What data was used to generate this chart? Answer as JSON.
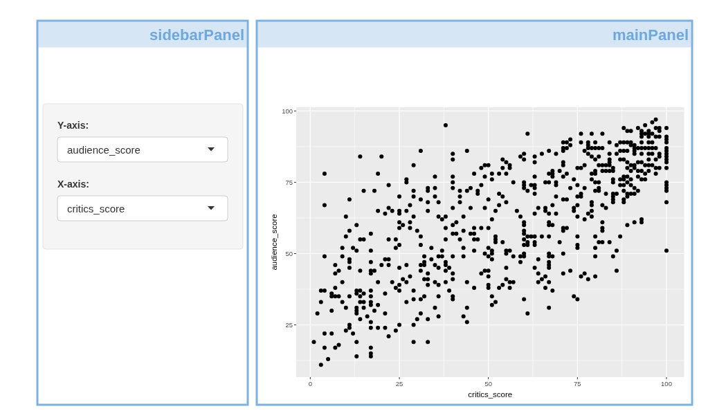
{
  "chart_data": [
    {
      "type": "other",
      "title": "sidebarPanel",
      "annotations": [
        "Y-axis:",
        "audience_score",
        "X-axis:",
        "critics_score"
      ]
    },
    {
      "type": "scatter",
      "title": "mainPanel",
      "xlabel": "critics_score",
      "ylabel": "audience_score",
      "marker": "circle",
      "grid": true,
      "xlim": [
        -3.95,
        104.95
      ],
      "ylim": [
        6.7,
        101.3
      ],
      "xticks": [
        0,
        25,
        50,
        75,
        100
      ],
      "yticks": [
        25,
        50,
        75,
        100
      ],
      "series": [
        {
          "color": "#000000",
          "x": [
            1,
            2,
            3,
            3,
            3,
            4,
            4,
            4,
            4,
            5,
            6,
            6,
            6,
            6,
            7,
            8,
            7,
            8,
            7,
            7,
            7,
            8,
            9,
            9,
            9,
            10,
            10,
            11,
            11,
            11,
            11,
            11,
            11,
            12,
            13,
            13,
            13,
            13,
            13,
            13,
            13,
            14,
            14,
            14,
            14,
            14,
            15,
            15,
            15,
            16,
            17,
            17,
            17,
            18,
            17,
            17,
            17,
            17,
            17,
            17,
            17,
            17,
            17,
            18,
            19,
            19,
            19,
            20,
            21,
            22,
            22,
            21,
            21,
            21,
            22,
            23,
            24,
            24,
            25,
            25,
            25,
            25,
            26,
            27,
            27,
            27,
            28,
            29,
            29,
            29,
            29,
            30,
            31,
            31,
            31,
            31,
            32,
            32,
            32,
            32,
            32,
            33,
            33,
            33,
            33,
            33,
            34,
            35,
            35,
            35,
            36,
            37,
            36,
            36,
            36,
            36,
            38,
            38,
            38,
            38,
            39,
            39,
            40,
            40,
            40,
            40,
            40,
            43,
            43,
            44,
            44,
            44,
            46,
            48
          ],
          "values": [
            19,
            29,
            11,
            33,
            37,
            37,
            49,
            22,
            17,
            13,
            22,
            30,
            36,
            35,
            35,
            35,
            17,
            18,
            38,
            43,
            46,
            44,
            49,
            40,
            33,
            31,
            23,
            48,
            47,
            45,
            35,
            25,
            24,
            22,
            19,
            14,
            37,
            36,
            31,
            30,
            29,
            37,
            35,
            33,
            27,
            44,
            36,
            33,
            31,
            28,
            47,
            44,
            43,
            44,
            37,
            35,
            33,
            32,
            26,
            24,
            17,
            15,
            14,
            30,
            40,
            32,
            24,
            46,
            48,
            48,
            46,
            36,
            29,
            24,
            21,
            40,
            23,
            38,
            45,
            39,
            37,
            25,
            41,
            46,
            40,
            33,
            42,
            37,
            34,
            25,
            19,
            27,
            46,
            44,
            34,
            29,
            49,
            47,
            46,
            41,
            35,
            43,
            41,
            39,
            27,
            19,
            48,
            46,
            40,
            31,
            49,
            49,
            45,
            39,
            35,
            28,
            47,
            46,
            44,
            40,
            45,
            37,
            49,
            43,
            41,
            35,
            34,
            49,
            28,
            40,
            31,
            26,
            38,
            43
          ]
        },
        {
          "color": "#000000",
          "x": [
            4,
            4,
            9,
            10,
            10,
            11,
            11,
            12,
            13,
            13,
            14,
            14,
            15,
            15,
            17,
            17,
            18,
            19,
            19,
            20,
            21,
            22,
            22,
            22,
            23,
            24,
            24,
            25,
            25,
            25,
            25,
            25,
            25,
            26,
            27,
            27,
            27,
            28,
            28,
            28,
            29,
            29,
            29,
            29,
            30,
            31,
            31,
            31,
            31,
            33,
            33,
            33,
            33,
            34,
            35,
            35,
            35,
            36,
            36,
            37,
            37,
            38,
            38,
            38,
            38,
            40,
            40,
            40,
            40,
            40,
            40,
            40,
            40,
            41,
            41,
            42,
            42,
            42,
            42,
            43,
            43,
            43,
            44,
            44,
            45,
            45,
            45,
            46,
            46,
            46,
            46,
            46,
            47,
            47,
            47,
            48,
            48,
            48
          ],
          "values": [
            78,
            67,
            52,
            63,
            56,
            69,
            58,
            52,
            60,
            51,
            84,
            55,
            55,
            72,
            57,
            51,
            72,
            78,
            65,
            84,
            64,
            74,
            66,
            55,
            65,
            55,
            52,
            70,
            65,
            64,
            61,
            59,
            53,
            60,
            76,
            75,
            65,
            61,
            59,
            67,
            81,
            72,
            70,
            63,
            58,
            86,
            69,
            56,
            53,
            73,
            72,
            68,
            65,
            52,
            77,
            73,
            70,
            68,
            63,
            62,
            51,
            95,
            63,
            59,
            55,
            85,
            83,
            77,
            75,
            73,
            66,
            60,
            57,
            61,
            57,
            72,
            70,
            68,
            55,
            63,
            58,
            52,
            86,
            72,
            73,
            66,
            57,
            78,
            59,
            57,
            55,
            51,
            72,
            71,
            55,
            80,
            74,
            59
          ]
        },
        {
          "color": "#000000",
          "x": [
            49,
            50,
            51,
            51,
            49,
            50,
            50,
            50,
            50,
            51,
            51,
            52,
            53,
            54,
            55,
            55,
            56,
            57,
            56,
            55,
            57,
            59,
            60,
            60,
            59,
            60,
            61,
            63,
            64,
            64,
            64,
            65,
            66,
            66,
            67,
            67,
            68,
            67,
            67,
            67,
            67,
            68,
            67,
            71,
            71,
            73,
            74,
            75,
            76,
            77,
            78,
            80,
            80,
            85,
            86
          ],
          "values": [
            50,
            49,
            50,
            48,
            44,
            44,
            42,
            39,
            38,
            35,
            32,
            33,
            38,
            39,
            45,
            41,
            40,
            40,
            38,
            50,
            49,
            49,
            49,
            50,
            47,
            34,
            29,
            45,
            48,
            43,
            40,
            41,
            42,
            38,
            50,
            49,
            49,
            47,
            46,
            45,
            40,
            37,
            31,
            50,
            43,
            44,
            35,
            34,
            42,
            43,
            41,
            49,
            42,
            49,
            44
          ]
        },
        {
          "color": "#000000",
          "x": [
            49,
            50,
            49,
            51,
            51,
            49,
            50,
            51,
            52,
            52,
            52,
            52,
            50,
            51,
            53,
            54,
            54,
            55,
            56,
            56,
            55,
            53,
            54,
            55,
            53,
            54,
            55,
            56,
            57,
            58,
            59,
            60,
            60,
            60,
            60,
            59,
            60,
            60,
            60,
            60,
            60,
            61,
            62,
            63,
            63,
            63,
            61,
            63,
            63,
            65,
            63,
            61,
            61,
            61,
            60,
            60,
            62,
            63,
            63,
            63,
            65,
            67,
            63,
            64,
            66,
            66,
            67,
            68,
            69,
            67,
            67,
            68,
            67,
            69,
            66,
            67,
            68,
            68,
            68,
            67,
            69,
            69,
            70,
            71,
            72,
            69,
            71,
            71,
            71,
            71,
            71,
            72,
            72,
            73,
            73,
            70,
            71,
            71,
            72,
            71,
            72,
            73,
            74,
            75,
            75,
            76,
            76,
            75,
            77,
            74,
            74,
            75,
            77,
            78,
            79,
            79,
            79,
            79,
            80,
            81,
            79,
            79,
            80,
            81,
            80,
            80,
            75,
            76,
            77,
            76,
            79,
            82,
            76,
            78,
            80,
            77,
            78,
            78,
            79,
            80,
            81,
            82,
            78,
            79,
            80,
            81,
            81,
            82,
            83,
            84
          ],
          "values": [
            81,
            81,
            77,
            78,
            76,
            66,
            69,
            62,
            65,
            56,
            55,
            54,
            52,
            51,
            78,
            83,
            80,
            82,
            81,
            80,
            78,
            71,
            70,
            68,
            67,
            54,
            51,
            51,
            75,
            65,
            63,
            61,
            60,
            58,
            57,
            84,
            85,
            83,
            75,
            74,
            73,
            72,
            74,
            74,
            73,
            71,
            92,
            84,
            82,
            85,
            77,
            56,
            54,
            53,
            55,
            53,
            56,
            56,
            54,
            53,
            56,
            56,
            64,
            66,
            66,
            65,
            64,
            67,
            64,
            61,
            60,
            60,
            86,
            85,
            75,
            75,
            79,
            78,
            77,
            78,
            75,
            74,
            79,
            77,
            78,
            70,
            82,
            81,
            89,
            87,
            86,
            89,
            87,
            90,
            88,
            54,
            59,
            58,
            59,
            69,
            69,
            73,
            76,
            74,
            70,
            70,
            71,
            67,
            73,
            66,
            65,
            63,
            62,
            64,
            63,
            68,
            67,
            65,
            72,
            72,
            76,
            78,
            75,
            75,
            79,
            78,
            80,
            80,
            81,
            92,
            92,
            92,
            89,
            89,
            89,
            86,
            88,
            87,
            87,
            87,
            87,
            87,
            85,
            84,
            83,
            84,
            81,
            81,
            81,
            81
          ]
        },
        {
          "color": "#000000",
          "x": [
            84,
            84,
            82,
            83,
            84,
            85,
            85,
            84,
            84,
            82,
            83,
            81,
            83,
            85,
            85,
            85,
            85,
            86,
            85,
            85,
            82,
            82,
            82,
            80,
            81,
            82,
            84,
            80,
            86,
            87,
            75,
            75,
            75,
            86,
            87,
            88,
            89,
            90,
            90,
            88,
            89,
            90,
            86,
            87,
            87,
            88,
            89,
            90,
            91,
            88,
            89,
            91,
            91,
            91,
            91,
            92,
            93,
            94,
            95,
            93,
            94,
            95,
            96,
            93,
            93,
            95,
            95,
            92,
            93,
            94,
            95,
            96,
            97,
            96,
            97,
            97,
            98,
            98,
            98,
            97,
            96,
            93,
            95,
            96,
            95,
            97,
            92,
            93,
            94,
            95,
            96,
            89,
            90,
            91,
            92,
            93,
            97,
            98,
            94,
            95,
            97,
            98,
            98,
            89,
            90,
            92,
            93,
            94,
            88,
            88,
            87,
            88,
            89,
            90,
            91,
            92,
            87,
            88,
            89,
            90,
            91,
            89,
            88,
            88,
            100,
            100,
            100,
            100,
            100,
            100,
            100,
            100,
            100,
            100,
            100,
            100,
            100,
            100,
            100,
            100,
            100,
            89,
            91,
            93,
            93,
            50
          ],
          "values": [
            82,
            83,
            79,
            79,
            79,
            79,
            80,
            89,
            85,
            67,
            66,
            73,
            71,
            71,
            70,
            69,
            68,
            71,
            75,
            76,
            61,
            59,
            58,
            56,
            54,
            54,
            54,
            52,
            51,
            56,
            56,
            53,
            52,
            88,
            89,
            89,
            89,
            89,
            88,
            94,
            93,
            93,
            85,
            86,
            83,
            83,
            82,
            81,
            81,
            86,
            86,
            88,
            87,
            86,
            85,
            94,
            93,
            95,
            93,
            92,
            92,
            92,
            92,
            91,
            89,
            91,
            89,
            87,
            87,
            87,
            87,
            87,
            87,
            96,
            97,
            94,
            94,
            93,
            91,
            91,
            89,
            85,
            85,
            85,
            83,
            83,
            82,
            82,
            81,
            81,
            81,
            80,
            79,
            80,
            79,
            79,
            80,
            80,
            78,
            79,
            78,
            84,
            85,
            77,
            76,
            77,
            76,
            76,
            77,
            76,
            76,
            74,
            75,
            74,
            73,
            72,
            74,
            72,
            71,
            71,
            71,
            70,
            69,
            68,
            94,
            91,
            90,
            89,
            87,
            86,
            85,
            84,
            83,
            82,
            80,
            75,
            74,
            73,
            72,
            68,
            51,
            60,
            61,
            62,
            61,
            59
          ]
        }
      ]
    }
  ]
}
